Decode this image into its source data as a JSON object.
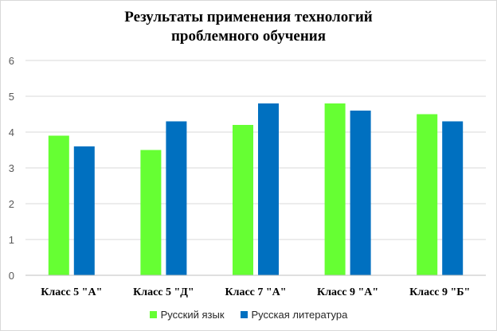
{
  "chart_data": {
    "type": "bar",
    "title_lines": [
      "Результаты применения технологий",
      "проблемного обучения"
    ],
    "categories": [
      "Класс 5 \"А\"",
      "Класс  5 \"Д\"",
      "Класс 7 \"А\"",
      "Класс 9 \"А\"",
      "Класс 9 \"Б\""
    ],
    "series": [
      {
        "name": "Русский язык",
        "color": "#66ff33",
        "values": [
          3.9,
          3.5,
          4.2,
          4.8,
          4.5
        ]
      },
      {
        "name": "Русская литература",
        "color": "#0070c0",
        "values": [
          3.6,
          4.3,
          4.8,
          4.6,
          4.3
        ]
      }
    ],
    "ylim": [
      0,
      6
    ],
    "yticks": [
      "0",
      "1",
      "2",
      "3",
      "4",
      "5",
      "6"
    ],
    "grid": true,
    "legend_position": "bottom",
    "gridline_color": "#d9d9d9",
    "axis_color": "#bfbfbf"
  }
}
